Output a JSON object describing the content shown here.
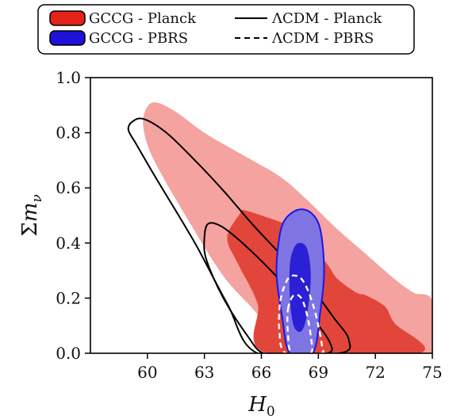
{
  "chart_data": {
    "type": "contour",
    "xlabel_symbol": "H",
    "xlabel_sub": "0",
    "ylabel_prefix": "Σ",
    "ylabel_symbol": "m",
    "ylabel_sub": "ν",
    "xlim": [
      57,
      75
    ],
    "ylim": [
      0.0,
      1.0
    ],
    "x_ticks": [
      60,
      63,
      66,
      69,
      72,
      75
    ],
    "y_ticks": [
      0.0,
      0.2,
      0.4,
      0.6,
      0.8,
      1.0
    ],
    "x_tick_labels": [
      "60",
      "63",
      "66",
      "69",
      "72",
      "75"
    ],
    "y_tick_labels": [
      "0.0",
      "0.2",
      "0.4",
      "0.6",
      "0.8",
      "1.0"
    ],
    "legend": {
      "position": "top-center",
      "entries": [
        {
          "label": "GCCG - Planck",
          "style": "filled",
          "color": "#e4231b"
        },
        {
          "label": "GCCG - PBRS",
          "style": "filled",
          "color": "#1e12d8"
        },
        {
          "label": "ΛCDM - Planck",
          "style": "solid-line",
          "color": "#000000"
        },
        {
          "label": "ΛCDM - PBRS",
          "style": "dashed-line",
          "color": "#000000"
        }
      ]
    },
    "series": [
      {
        "name": "GCCG - Planck",
        "contours": [
          {
            "level": "outer",
            "fill": "#f4a3a0",
            "points": [
              [
                59.8,
                0.86
              ],
              [
                60.3,
                0.91
              ],
              [
                61.4,
                0.88
              ],
              [
                63.0,
                0.8
              ],
              [
                65.0,
                0.72
              ],
              [
                67.0,
                0.64
              ],
              [
                68.5,
                0.55
              ],
              [
                70.0,
                0.45
              ],
              [
                71.5,
                0.36
              ],
              [
                73.0,
                0.27
              ],
              [
                74.0,
                0.22
              ],
              [
                75.0,
                0.19
              ],
              [
                75.0,
                0.0
              ],
              [
                66.3,
                0.0
              ],
              [
                66.0,
                0.12
              ],
              [
                64.0,
                0.28
              ],
              [
                62.0,
                0.5
              ],
              [
                60.5,
                0.68
              ],
              [
                59.9,
                0.78
              ]
            ]
          },
          {
            "level": "inner",
            "fill": "#e2463b",
            "points": [
              [
                64.9,
                0.51
              ],
              [
                65.0,
                0.52
              ],
              [
                66.0,
                0.5
              ],
              [
                67.5,
                0.46
              ],
              [
                68.5,
                0.4
              ],
              [
                69.5,
                0.32
              ],
              [
                70.0,
                0.27
              ],
              [
                71.0,
                0.22
              ],
              [
                71.5,
                0.21
              ],
              [
                72.5,
                0.17
              ],
              [
                73.0,
                0.11
              ],
              [
                74.3,
                0.0
              ],
              [
                66.3,
                0.0
              ],
              [
                65.8,
                0.18
              ],
              [
                64.8,
                0.32
              ],
              [
                64.2,
                0.42
              ]
            ]
          }
        ]
      },
      {
        "name": "GCCG - PBRS",
        "contours": [
          {
            "level": "outer",
            "fill": "#7e75e3",
            "stroke": "#1c14e6",
            "points": [
              [
                67.9,
                0.52
              ],
              [
                68.6,
                0.51
              ],
              [
                69.1,
                0.45
              ],
              [
                69.3,
                0.3
              ],
              [
                69.1,
                0.15
              ],
              [
                68.7,
                0.0
              ],
              [
                67.5,
                0.0
              ],
              [
                67.1,
                0.13
              ],
              [
                66.8,
                0.28
              ],
              [
                66.9,
                0.4
              ],
              [
                67.2,
                0.48
              ]
            ]
          },
          {
            "level": "inner",
            "fill": "#2c20d6",
            "points": [
              [
                68.0,
                0.4
              ],
              [
                68.4,
                0.38
              ],
              [
                68.6,
                0.28
              ],
              [
                68.4,
                0.14
              ],
              [
                68.1,
                0.08
              ],
              [
                67.7,
                0.1
              ],
              [
                67.5,
                0.2
              ],
              [
                67.5,
                0.32
              ],
              [
                67.7,
                0.38
              ]
            ]
          }
        ]
      },
      {
        "name": "ΛCDM - Planck",
        "contours": [
          {
            "level": "outer",
            "stroke": "#000000",
            "points": [
              [
                59.0,
                0.81
              ],
              [
                59.2,
                0.84
              ],
              [
                59.8,
                0.85
              ],
              [
                61.0,
                0.8
              ],
              [
                62.5,
                0.7
              ],
              [
                64.0,
                0.59
              ],
              [
                65.5,
                0.47
              ],
              [
                67.0,
                0.36
              ],
              [
                68.5,
                0.25
              ],
              [
                69.8,
                0.13
              ],
              [
                70.6,
                0.05
              ],
              [
                70.1,
                0.0
              ],
              [
                65.8,
                0.0
              ],
              [
                64.2,
                0.18
              ],
              [
                62.5,
                0.4
              ],
              [
                60.5,
                0.63
              ],
              [
                59.4,
                0.76
              ]
            ]
          },
          {
            "level": "inner",
            "stroke": "#000000",
            "points": [
              [
                63.0,
                0.42
              ],
              [
                63.2,
                0.47
              ],
              [
                63.9,
                0.46
              ],
              [
                65.0,
                0.4
              ],
              [
                66.5,
                0.3
              ],
              [
                67.8,
                0.2
              ],
              [
                68.8,
                0.12
              ],
              [
                69.6,
                0.04
              ],
              [
                69.5,
                0.0
              ],
              [
                67.5,
                0.0
              ],
              [
                66.1,
                0.0
              ],
              [
                65.3,
                0.06
              ],
              [
                64.0,
                0.2
              ],
              [
                63.1,
                0.34
              ]
            ]
          }
        ]
      },
      {
        "name": "ΛCDM - PBRS",
        "contours": [
          {
            "level": "outer",
            "stroke": "#ffffff",
            "dash": true,
            "points": [
              [
                67.0,
                0.19
              ],
              [
                67.4,
                0.27
              ],
              [
                67.9,
                0.28
              ],
              [
                68.3,
                0.25
              ],
              [
                68.7,
                0.18
              ],
              [
                69.0,
                0.1
              ],
              [
                69.2,
                0.02
              ],
              [
                69.1,
                0.0
              ],
              [
                67.3,
                0.0
              ],
              [
                66.95,
                0.08
              ]
            ]
          },
          {
            "level": "inner",
            "stroke": "#ffffff",
            "dash": true,
            "points": [
              [
                67.4,
                0.16
              ],
              [
                67.7,
                0.21
              ],
              [
                68.1,
                0.2
              ],
              [
                68.4,
                0.14
              ],
              [
                68.6,
                0.06
              ],
              [
                68.6,
                0.0
              ],
              [
                67.6,
                0.0
              ],
              [
                67.4,
                0.07
              ]
            ]
          }
        ]
      }
    ]
  }
}
